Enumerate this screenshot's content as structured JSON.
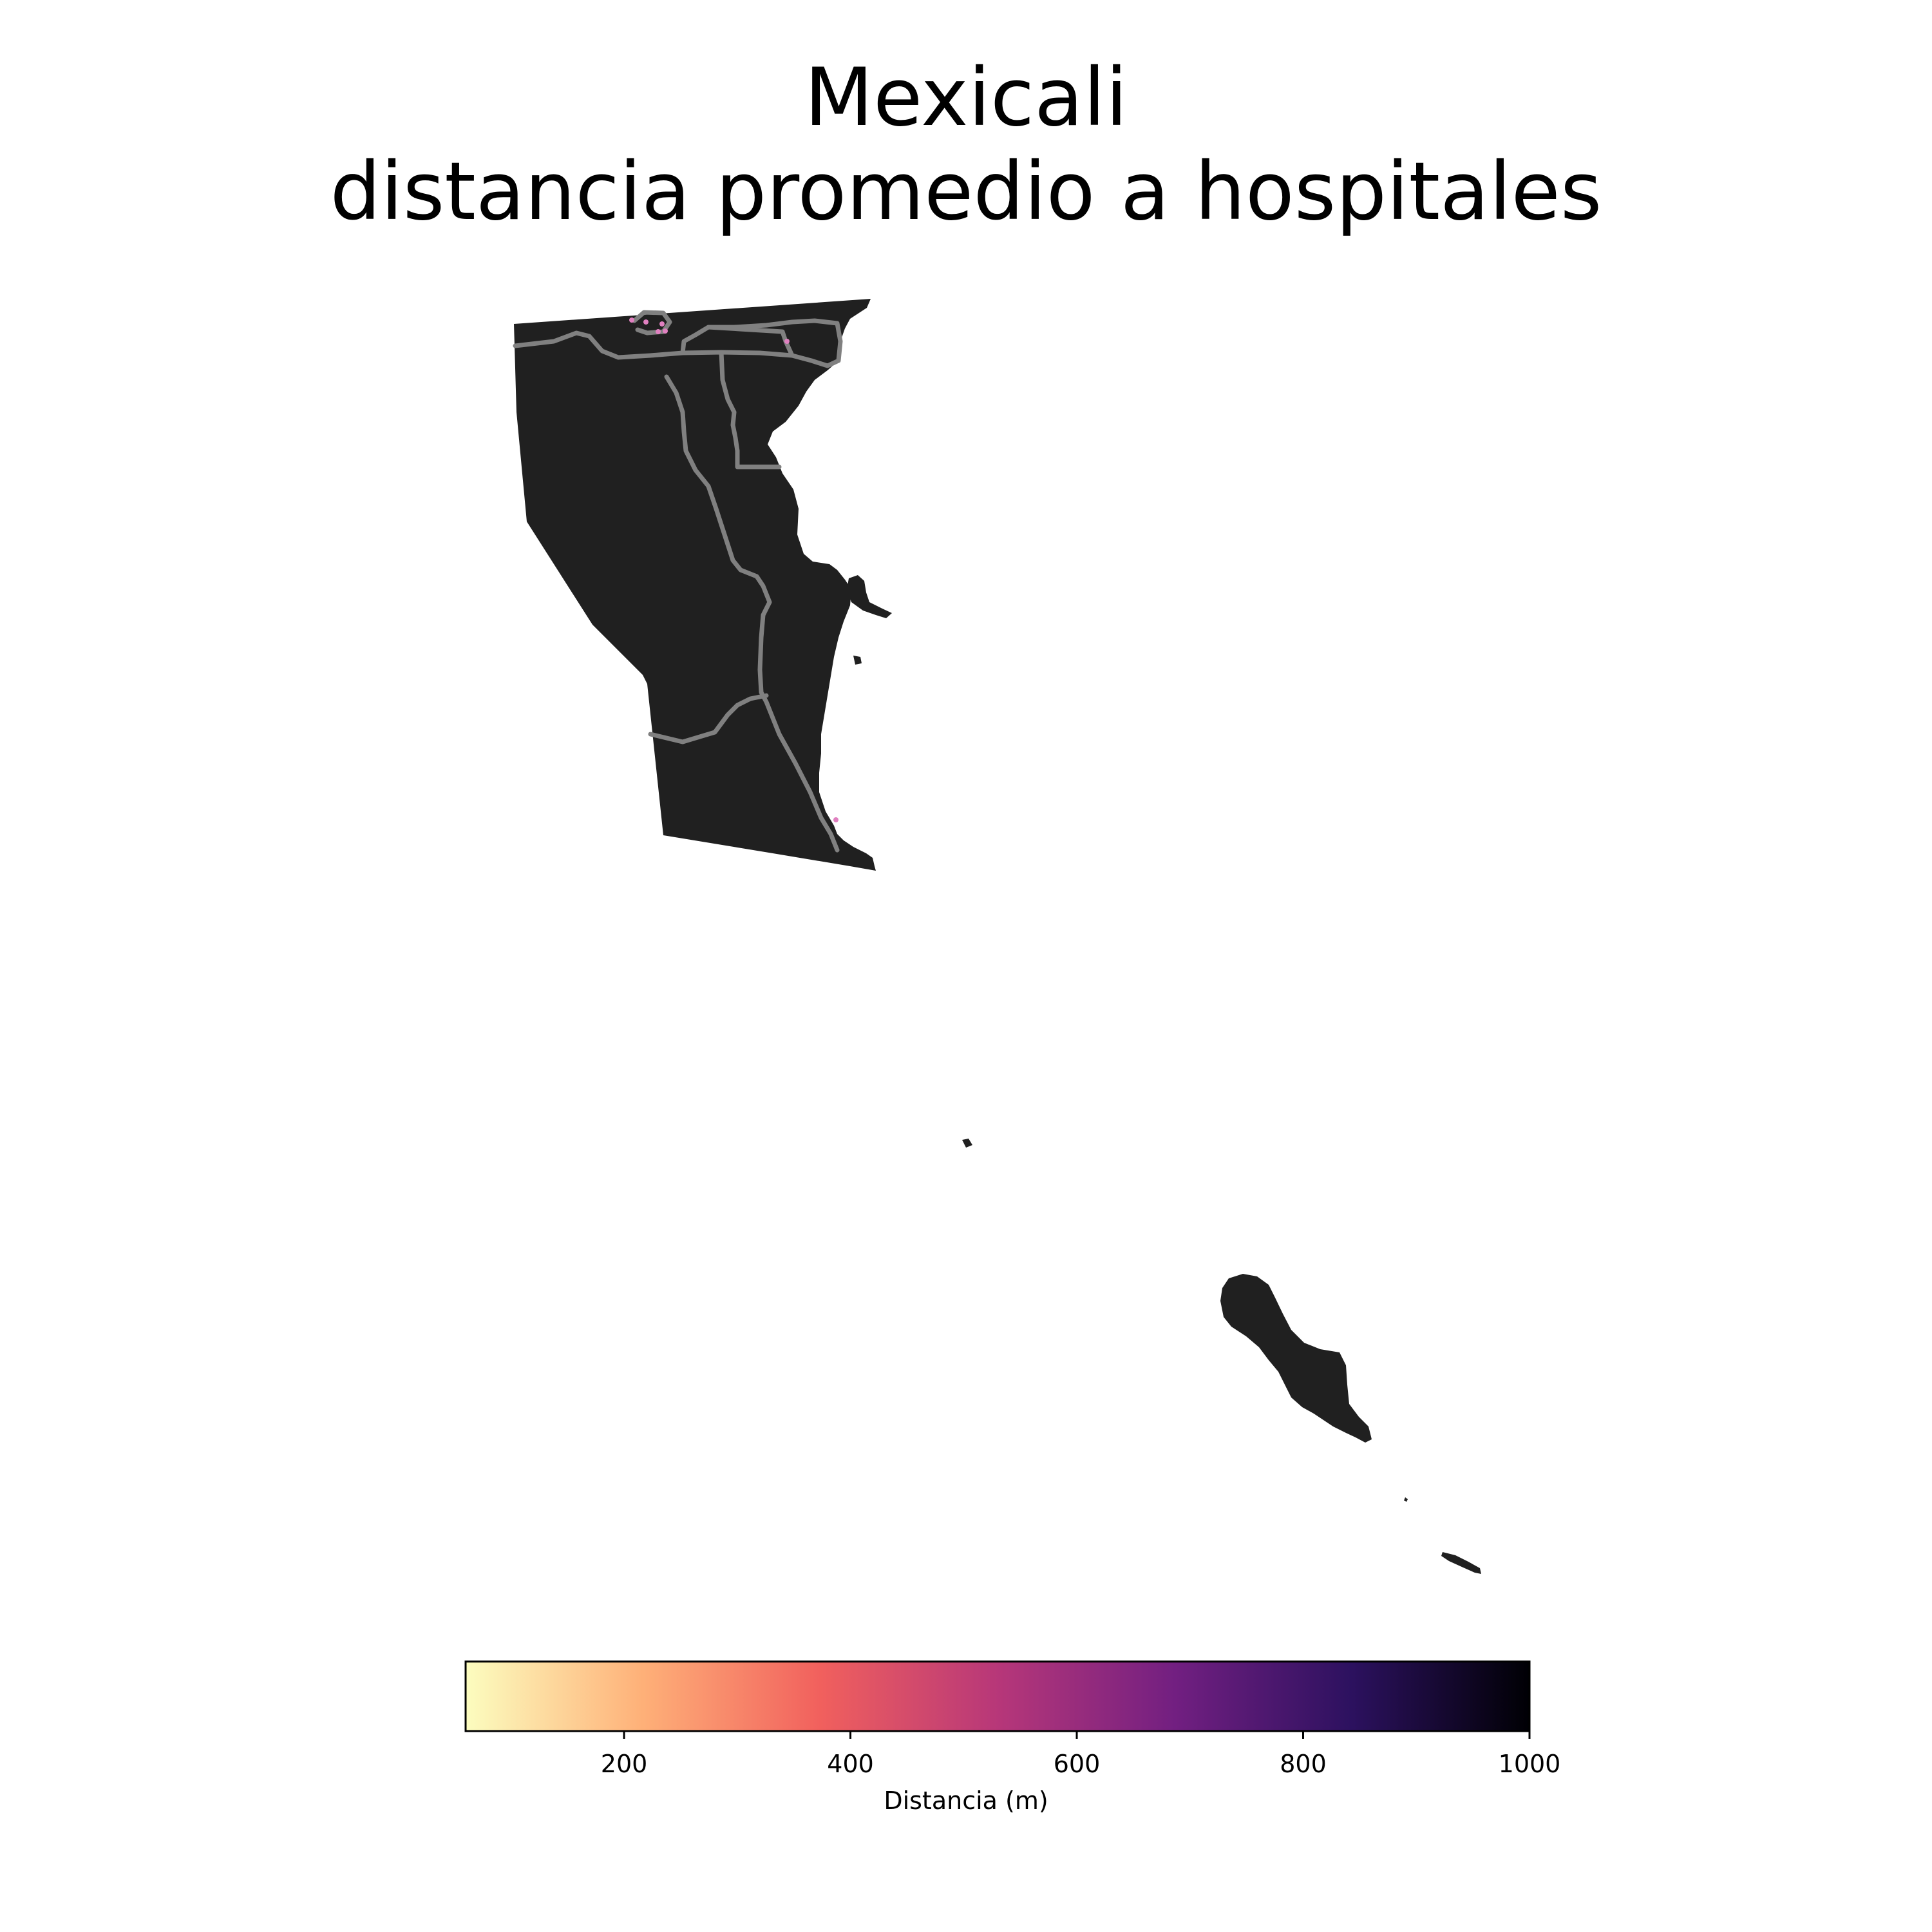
{
  "title": {
    "line1": "Mexicali",
    "line2": "distancia promedio a hospitales"
  },
  "colorbar": {
    "label": "Distancia (m)",
    "colormap": "magma_r",
    "min": 60,
    "max": 1000,
    "ticks": [
      {
        "value": 200,
        "label": "200"
      },
      {
        "value": 400,
        "label": "400"
      },
      {
        "value": 600,
        "label": "600"
      },
      {
        "value": 800,
        "label": "800"
      },
      {
        "value": 1000,
        "label": "1000"
      }
    ],
    "stops": [
      "#fcfdbf",
      "#feb078",
      "#f1605d",
      "#b73779",
      "#721f81",
      "#2c115f",
      "#000004"
    ]
  },
  "map": {
    "fill_color": "#202020",
    "road_color": "#808080",
    "hospital_marker_color": "#e080c0"
  }
}
